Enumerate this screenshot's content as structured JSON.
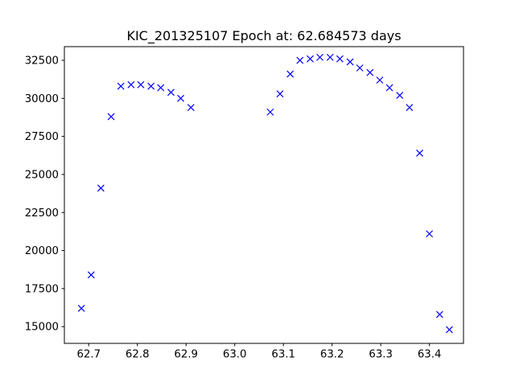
{
  "chart_data": {
    "type": "scatter",
    "title": "KIC_201325107 Epoch at: 62.684573 days",
    "xlabel": "",
    "ylabel": "",
    "xlim": [
      62.65,
      63.47
    ],
    "ylim": [
      13900,
      33400
    ],
    "xticks": [
      62.7,
      62.8,
      62.9,
      63.0,
      63.1,
      63.2,
      63.3,
      63.4
    ],
    "xtick_labels": [
      "62.7",
      "62.8",
      "62.9",
      "63.0",
      "63.1",
      "63.2",
      "63.3",
      "63.4"
    ],
    "yticks": [
      15000,
      17500,
      20000,
      22500,
      25000,
      27500,
      30000,
      32500
    ],
    "ytick_labels": [
      "15000",
      "17500",
      "20000",
      "22500",
      "25000",
      "27500",
      "30000",
      "32500"
    ],
    "grid": false,
    "marker": "x",
    "marker_color": "#0000ff",
    "series": [
      {
        "x": [
          62.685,
          62.705,
          62.725,
          62.746,
          62.766,
          62.787,
          62.807,
          62.828,
          62.848,
          62.869,
          62.889,
          62.91,
          63.073,
          63.093,
          63.114,
          63.134,
          63.155,
          63.175,
          63.196,
          63.216,
          63.237,
          63.257,
          63.278,
          63.298,
          63.318,
          63.339,
          63.359,
          63.38,
          63.4,
          63.421,
          63.441
        ],
        "y": [
          16200,
          18400,
          24100,
          28800,
          30800,
          30900,
          30900,
          30800,
          30700,
          30400,
          30000,
          29400,
          29100,
          30300,
          31600,
          32500,
          32600,
          32700,
          32700,
          32600,
          32400,
          32000,
          31700,
          31200,
          30700,
          30200,
          29400,
          26400,
          21100,
          15800,
          14800
        ]
      }
    ]
  }
}
